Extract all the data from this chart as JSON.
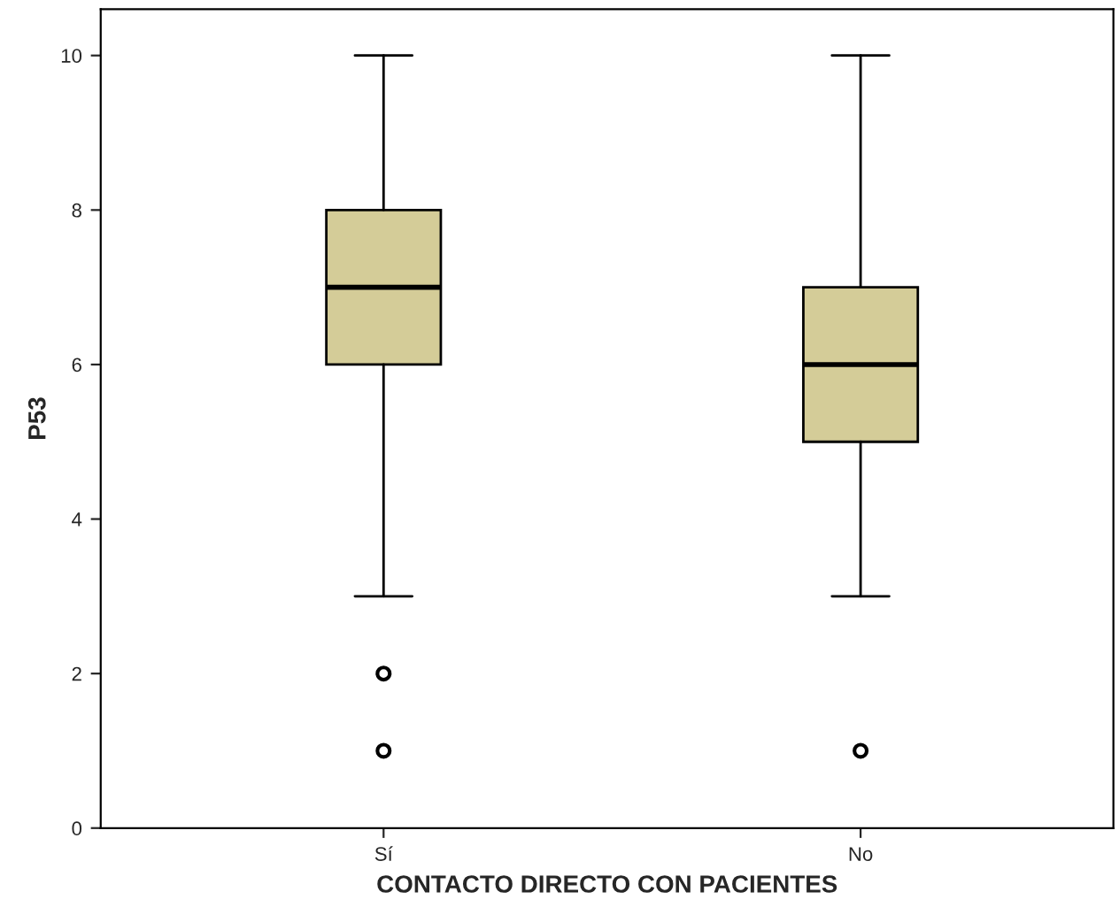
{
  "chart_data": {
    "type": "box",
    "xlabel": "CONTACTO DIRECTO CON PACIENTES",
    "ylabel": "P53",
    "categories": [
      "Sí",
      "No"
    ],
    "boxes": [
      {
        "low": 3,
        "q1": 6,
        "median": 7,
        "q3": 8,
        "high": 10,
        "outliers": [
          1,
          2
        ]
      },
      {
        "low": 3,
        "q1": 5,
        "median": 6,
        "q3": 7,
        "high": 10,
        "outliers": [
          1
        ]
      }
    ],
    "color": "#d4cc98",
    "ylim": [
      0,
      10.6
    ],
    "yticks": [
      0,
      2,
      4,
      6,
      8,
      10
    ],
    "grid": false
  }
}
